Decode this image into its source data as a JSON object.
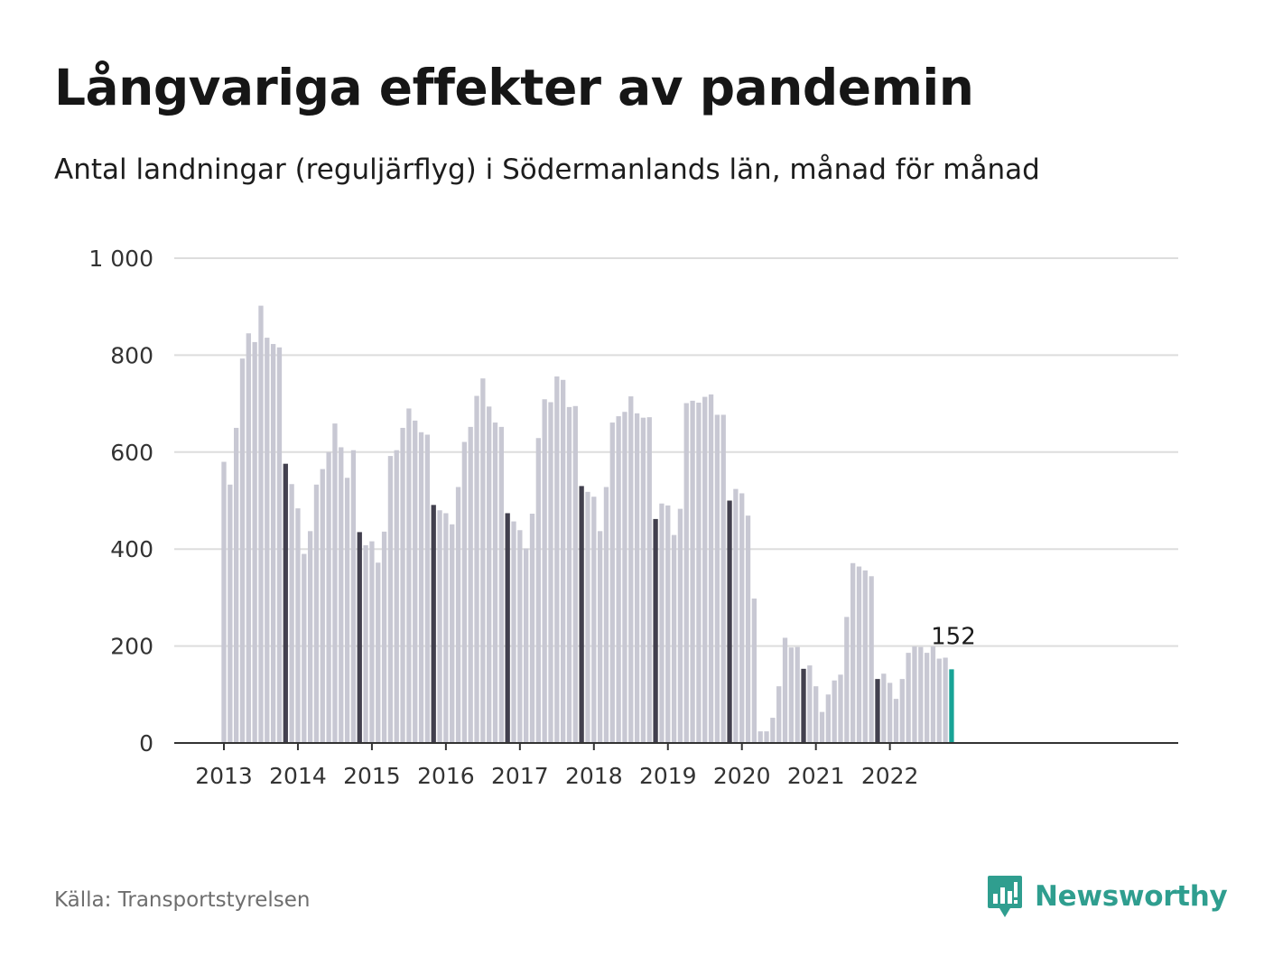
{
  "title": "Långvariga effekter av pandemin",
  "subtitle": "Antal landningar (reguljärflyg) i Södermanlands län, månad för månad",
  "source": "Källa: Transportstyrelsen",
  "brand": {
    "name": "Newsworthy",
    "icon": "newsworthy-logo-icon"
  },
  "colors": {
    "bar_default": "#c8c8d3",
    "bar_highlight": "#42404e",
    "bar_latest": "#18a396",
    "gridline": "#dddddd",
    "baseline": "#333333",
    "brand": "#2f9e8f"
  },
  "chart_data": {
    "type": "bar",
    "title": "Långvariga effekter av pandemin",
    "subtitle": "Antal landningar (reguljärflyg) i Södermanlands län, månad för månad",
    "xlabel": "",
    "ylabel": "",
    "ylim": [
      0,
      1000
    ],
    "yticks": [
      0,
      200,
      400,
      600,
      800,
      1000
    ],
    "ytick_labels": [
      "0",
      "200",
      "400",
      "600",
      "800",
      "1 000"
    ],
    "xtick_labels": [
      "2013",
      "2014",
      "2015",
      "2016",
      "2017",
      "2018",
      "2019",
      "2020",
      "2021",
      "2022"
    ],
    "grid": true,
    "start_month": "2013-01",
    "values": [
      580,
      533,
      650,
      793,
      845,
      827,
      902,
      836,
      823,
      816,
      576,
      534,
      484,
      390,
      437,
      533,
      565,
      600,
      659,
      610,
      547,
      604,
      435,
      408,
      416,
      372,
      436,
      592,
      604,
      650,
      690,
      665,
      641,
      636,
      491,
      480,
      474,
      451,
      528,
      621,
      652,
      716,
      752,
      694,
      661,
      652,
      474,
      457,
      439,
      401,
      473,
      629,
      709,
      703,
      756,
      749,
      693,
      695,
      530,
      518,
      508,
      437,
      528,
      661,
      674,
      683,
      715,
      680,
      671,
      672,
      462,
      494,
      490,
      429,
      483,
      701,
      706,
      702,
      714,
      719,
      677,
      677,
      500,
      524,
      515,
      469,
      298,
      24,
      24,
      52,
      117,
      217,
      197,
      198,
      153,
      160,
      117,
      64,
      100,
      129,
      141,
      260,
      371,
      364,
      356,
      344,
      132,
      143,
      124,
      91,
      132,
      186,
      199,
      198,
      186,
      199,
      174,
      176,
      152
    ],
    "highlighted_month": "November",
    "latest_value_label": "152",
    "annotations": [
      {
        "text": "152",
        "target": "latest bar"
      }
    ]
  }
}
